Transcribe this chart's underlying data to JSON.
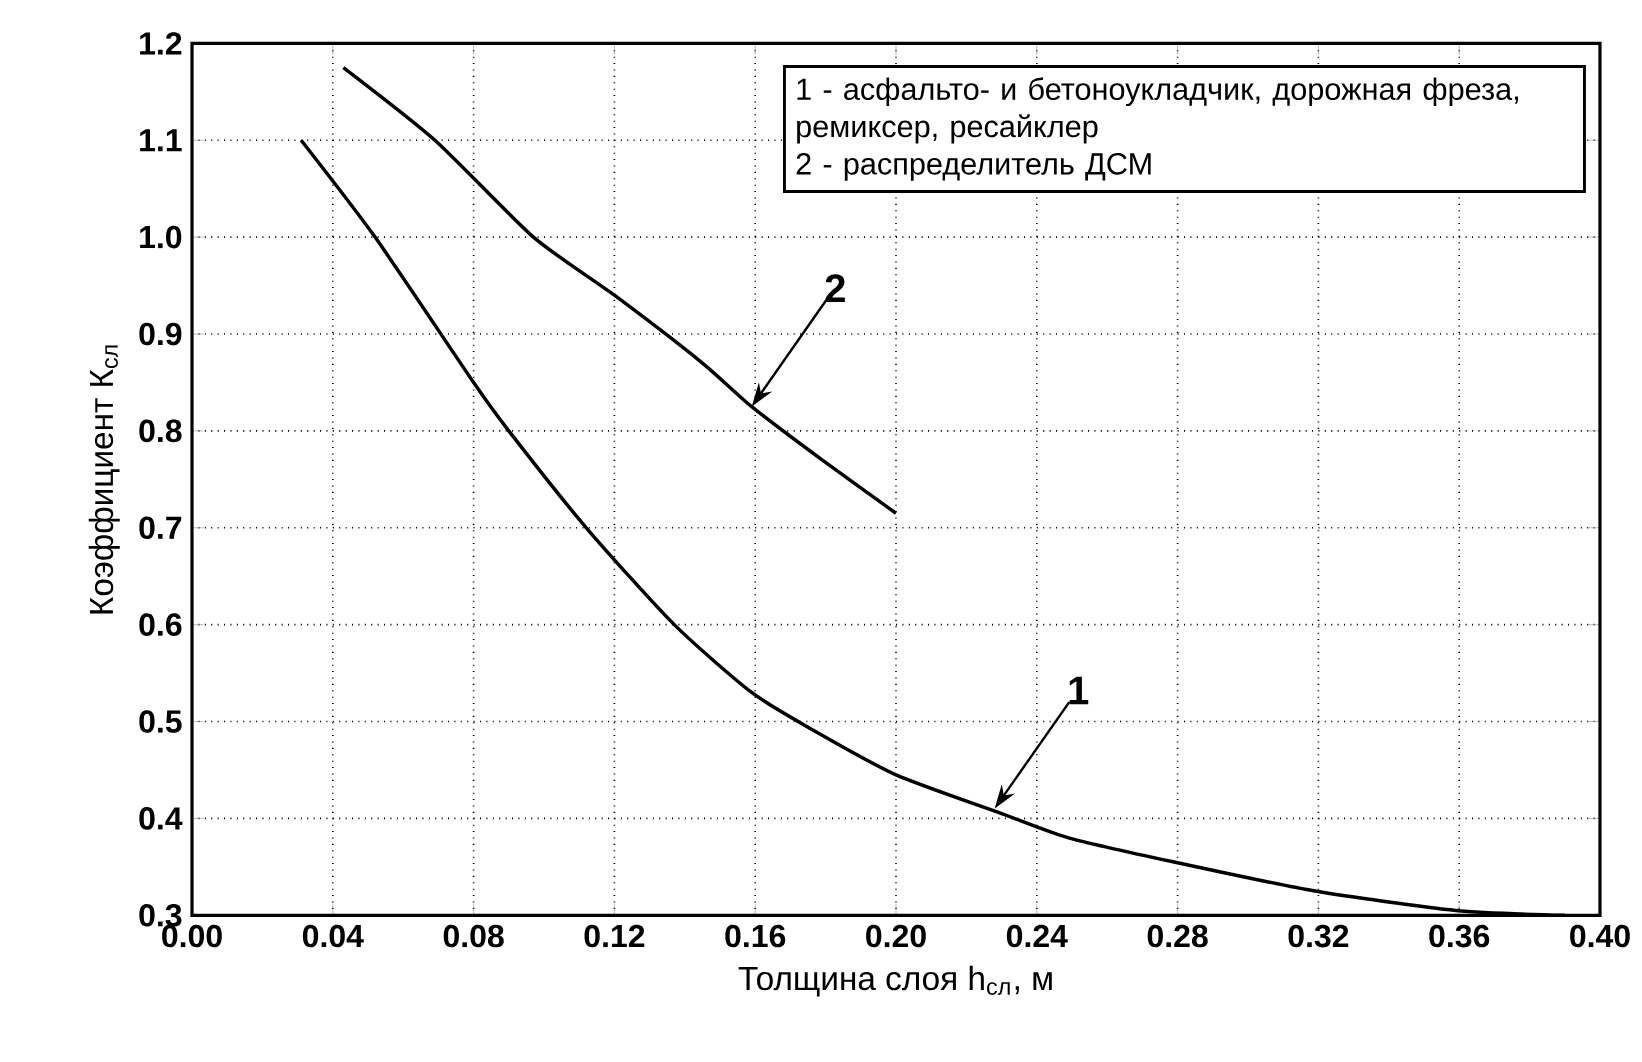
{
  "chart_data": {
    "type": "line",
    "xlabel": "Толщина слоя h$_{сл}$, м",
    "ylabel": "Коэффициент К$_{сл}$",
    "xlim": [
      0,
      0.4
    ],
    "ylim": [
      0.3,
      1.2
    ],
    "xticks": [
      {
        "value": 0,
        "label": "0.00"
      },
      {
        "value": 0.04,
        "label": "0.04"
      },
      {
        "value": 0.08,
        "label": "0.08"
      },
      {
        "value": 0.12,
        "label": "0.12"
      },
      {
        "value": 0.16,
        "label": "0.16"
      },
      {
        "value": 0.2,
        "label": "0.20"
      },
      {
        "value": 0.24,
        "label": "0.24"
      },
      {
        "value": 0.28,
        "label": "0.28"
      },
      {
        "value": 0.32,
        "label": "0.32"
      },
      {
        "value": 0.36,
        "label": "0.36"
      },
      {
        "value": 0.4,
        "label": "0.40"
      }
    ],
    "yticks": [
      0.3,
      0.4,
      0.5,
      0.6,
      0.7,
      0.8,
      0.9,
      {
        "value": 1,
        "label": "1.0"
      },
      1.1,
      1.2
    ],
    "grid": true,
    "series": [
      {
        "color": "#000000",
        "x": [
          0.031,
          0.052,
          0.08,
          0.09,
          0.112,
          0.137,
          0.159,
          0.177,
          0.2,
          0.23,
          0.249,
          0.279,
          0.319,
          0.359,
          0.39
        ],
        "values": [
          1.1,
          1.0,
          0.85,
          0.8,
          0.7,
          0.6,
          0.53,
          0.49,
          0.445,
          0.405,
          0.38,
          0.355,
          0.325,
          0.305,
          0.3
        ]
      },
      {
        "color": "#000000",
        "x": [
          0.043,
          0.069,
          0.097,
          0.12,
          0.145,
          0.159,
          0.179,
          0.2
        ],
        "values": [
          1.175,
          1.1,
          1.0,
          0.94,
          0.87,
          0.825,
          0.77,
          0.715
        ]
      }
    ],
    "annotations": [
      "1 - асфальто- и бетоноукладчик, дорожная фреза, ремиксер, ресайклер",
      "2 - распределитель ДСМ",
      {
        "text": "1",
        "x": 0.228,
        "y": 0.41
      },
      {
        "text": "2",
        "x": 0.159,
        "y": 0.825
      }
    ]
  }
}
